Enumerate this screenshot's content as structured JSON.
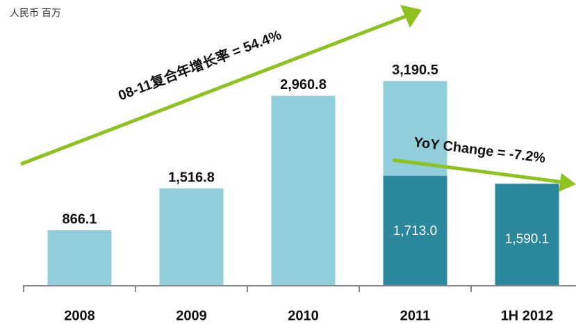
{
  "chart_data": {
    "type": "bar",
    "unit_label": "人民币 百万",
    "categories": [
      "2008",
      "2009",
      "2010",
      "2011",
      "1H 2012"
    ],
    "series": [
      {
        "color": "#92cddc",
        "values": [
          866.1,
          1516.8,
          2960.8,
          3190.5,
          null
        ],
        "value_labels": [
          "866.1",
          "1,516.8",
          "2,960.8",
          "3,190.5",
          null
        ]
      },
      {
        "color": "#2b879b",
        "values": [
          null,
          null,
          null,
          1713.0,
          1590.1
        ],
        "value_labels": [
          null,
          null,
          null,
          "1,713.0",
          "1,590.1"
        ]
      }
    ],
    "ylim": [
      0,
      3500
    ],
    "annotations": [
      "08-11复合年增长率 = 54.4%",
      "YoY Change = -7.2%"
    ]
  }
}
